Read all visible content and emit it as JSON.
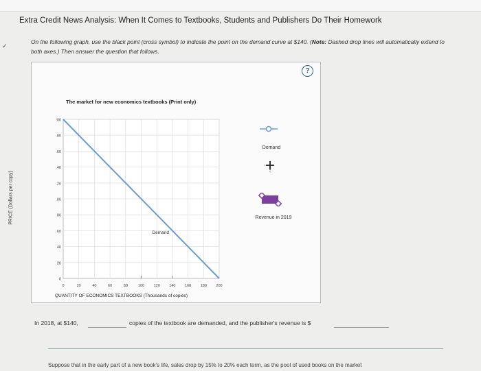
{
  "title": "Extra Credit News Analysis: When It Comes to Textbooks, Students and Publishers Do Their Homework",
  "instructions": {
    "main": "On the following graph, use the black point (cross symbol) to indicate the point on the demand curve at $140. (",
    "note_label": "Note:",
    "note": " Dashed drop lines will automatically extend to both axes.) Then answer the question that follows."
  },
  "help_label": "?",
  "chart_data": {
    "type": "line",
    "title": "The market for new economics textbooks (Print only)",
    "xlabel": "QUANTITY OF ECONOMICS TEXTBOOKS (Thousands of copies)",
    "ylabel": "PRICE (Dollars per copy)",
    "xlim": [
      0,
      200
    ],
    "ylim": [
      0,
      200
    ],
    "x_ticks": [
      0,
      20,
      40,
      60,
      80,
      100,
      120,
      140,
      160,
      180,
      200
    ],
    "y_ticks": [
      0,
      20,
      40,
      60,
      80,
      100,
      120,
      140,
      160,
      180,
      200
    ],
    "series": [
      {
        "name": "Demand",
        "x": [
          0,
          200
        ],
        "y": [
          200,
          0
        ],
        "color": "#6c9bd2"
      }
    ],
    "curve_label": "Demand",
    "legend": [
      {
        "name": "Demand",
        "symbol": "line-circle",
        "color": "#6c9bd2"
      },
      {
        "name": "",
        "symbol": "cross",
        "color": "#222222"
      },
      {
        "name": "Revenue in 2019",
        "symbol": "rectangle",
        "color": "#7b3fa0"
      }
    ],
    "grid": true
  },
  "question": {
    "prefix": "In 2018, at $140,",
    "middle": "copies of the textbook are demanded, and the publisher's revenue is $"
  },
  "next_text": "Suppose that in the early part of a new book's life, sales drop by 15% to 20% each term, as the pool of used books on the market"
}
